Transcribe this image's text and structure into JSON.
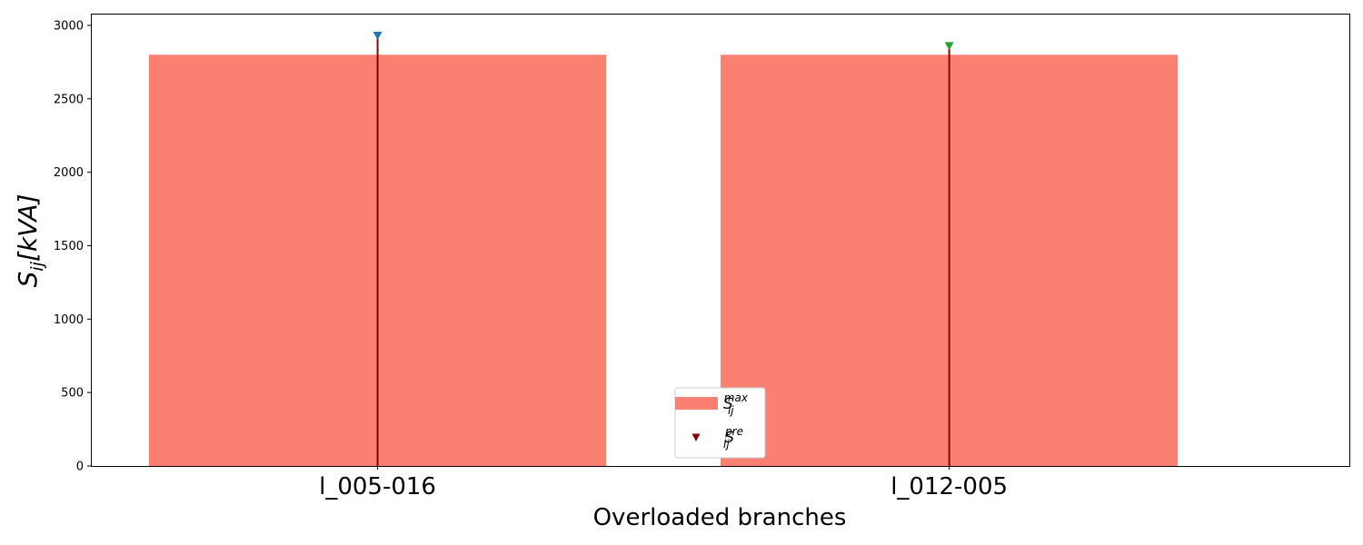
{
  "chart_data": {
    "type": "bar",
    "categories": [
      "l_005-016",
      "l_012-005"
    ],
    "series": [
      {
        "name": "S_ij^max",
        "kind": "bar",
        "color": "#fa8072",
        "values": [
          2800,
          2800
        ]
      },
      {
        "name": "S_ij^pre",
        "kind": "stem",
        "stem_color": "#8b0000",
        "marker": "triangle-down",
        "marker_colors": [
          "#1f77b4",
          "#2ca02c"
        ],
        "values": [
          2925,
          2855
        ]
      }
    ],
    "xlabel": "Overloaded branches",
    "ylabel": {
      "main": "S",
      "sub": "ij",
      "unit": "[kVA]"
    },
    "ylim": [
      0,
      3080
    ],
    "yticks": [
      "0",
      "500",
      "1000",
      "1500",
      "2000",
      "2500",
      "3000"
    ],
    "legend": {
      "position": "bottom-center",
      "entries": [
        {
          "main": "S",
          "sub": "ij",
          "sup": "max"
        },
        {
          "main": "S",
          "sub": "ij",
          "sup": "pre"
        }
      ]
    },
    "grid": false
  }
}
